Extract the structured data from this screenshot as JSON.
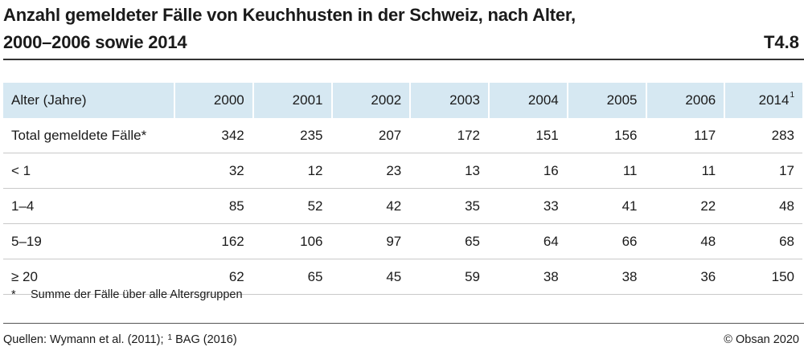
{
  "title_line1": "Anzahl gemeldeter Fälle von Keuchhusten in der Schweiz, nach Alter,",
  "title_line2": "2000–2006 sowie 2014",
  "table_id": "T4.8",
  "table": {
    "header_label": "Alter (Jahre)",
    "years": [
      {
        "label": "2000",
        "sup": ""
      },
      {
        "label": "2001",
        "sup": ""
      },
      {
        "label": "2002",
        "sup": ""
      },
      {
        "label": "2003",
        "sup": ""
      },
      {
        "label": "2004",
        "sup": ""
      },
      {
        "label": "2005",
        "sup": ""
      },
      {
        "label": "2006",
        "sup": ""
      },
      {
        "label": "2014",
        "sup": "1"
      }
    ],
    "rows": [
      {
        "label": "Total gemeldete Fälle*",
        "values": [
          "342",
          "235",
          "207",
          "172",
          "151",
          "156",
          "117",
          "283"
        ]
      },
      {
        "label": "< 1",
        "values": [
          "32",
          "12",
          "23",
          "13",
          "16",
          "11",
          "11",
          "17"
        ]
      },
      {
        "label": "1–4",
        "values": [
          "85",
          "52",
          "42",
          "35",
          "33",
          "41",
          "22",
          "48"
        ]
      },
      {
        "label": "5–19",
        "values": [
          "162",
          "106",
          "97",
          "65",
          "64",
          "66",
          "48",
          "68"
        ]
      },
      {
        "label": "≥ 20",
        "values": [
          "62",
          "65",
          "45",
          "59",
          "38",
          "38",
          "36",
          "150"
        ]
      }
    ]
  },
  "footnote": {
    "marker": "*",
    "text": "Summe der Fälle über alle Altersgruppen"
  },
  "sources": {
    "prefix": "Quellen: Wymann et al. (2011); ",
    "sup": "1",
    "suffix": " BAG (2016)"
  },
  "copyright": "© Obsan 2020"
}
